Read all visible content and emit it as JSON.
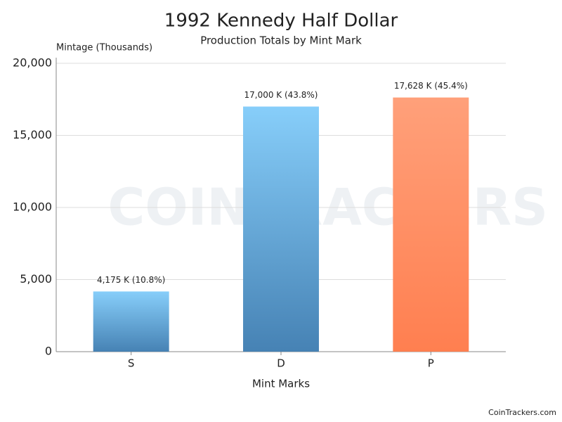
{
  "chart_data": {
    "type": "bar",
    "title": "1992 Kennedy Half Dollar",
    "subtitle": "Production Totals by Mint Mark",
    "y_label": "Mintage (Thousands)",
    "x_label": "Mint Marks",
    "categories": [
      "S",
      "D",
      "P"
    ],
    "values": [
      4175,
      17000,
      17628
    ],
    "value_labels": [
      "4,175 K (10.8%)",
      "17,000 K (43.8%)",
      "17,628 K (45.4%)"
    ],
    "colors": [
      {
        "top": "#87cefa",
        "bottom": "#4682b4"
      },
      {
        "top": "#87cefa",
        "bottom": "#4682b4"
      },
      {
        "top": "#ffa07a",
        "bottom": "#ff7f50"
      }
    ],
    "ylim": [
      0,
      20000
    ],
    "yticks": [
      0,
      {
        "value": 5000,
        "label": "5,000"
      },
      {
        "value": 10000,
        "label": "10,000"
      },
      {
        "value": 15000,
        "label": "15,000"
      },
      {
        "value": 20000,
        "label": "20,000"
      }
    ],
    "grid": true,
    "watermark": "COINTRACKERS",
    "footer": "CoinTrackers.com"
  }
}
